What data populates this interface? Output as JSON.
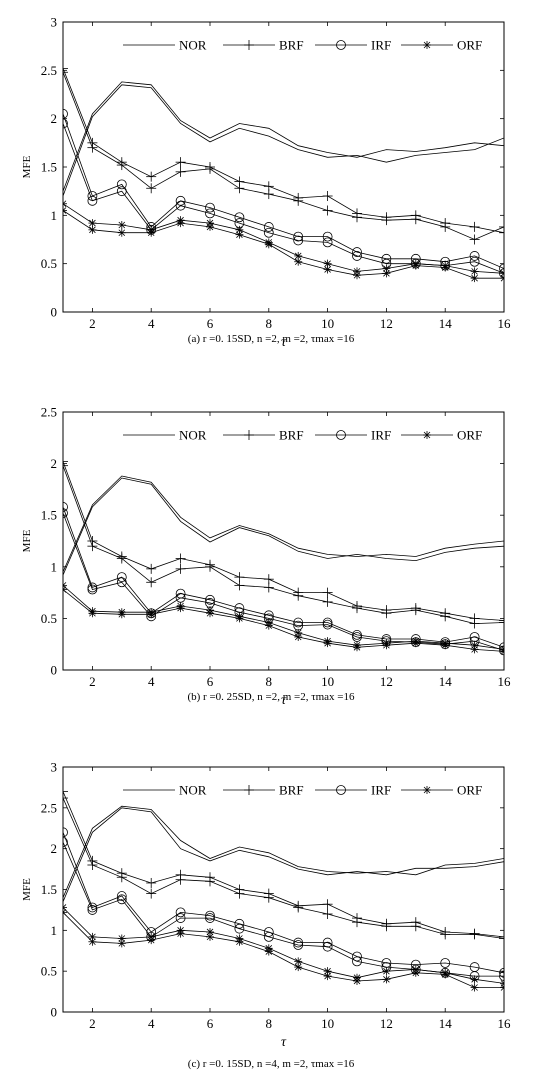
{
  "figure": {
    "captions": [
      "(a) r =0. 15SD, n =2, m =2, τmax =16",
      "(b) r =0. 25SD, n =2, m =2, τmax =16",
      "(c) r =0. 15SD, n =4, m =2, τmax =16"
    ]
  },
  "chart_data": [
    {
      "type": "line",
      "title": "",
      "xlabel": "τ",
      "ylabel": "MFE",
      "xlim": [
        1,
        16
      ],
      "ylim": [
        0,
        3
      ],
      "xticks": [
        2,
        4,
        6,
        8,
        10,
        12,
        14,
        16
      ],
      "yticks": [
        0,
        0.5,
        1,
        1.5,
        2,
        2.5,
        3
      ],
      "ytick_labels": [
        "0",
        "0.5",
        "1",
        "1.5",
        "2",
        "2.5",
        "3"
      ],
      "legend_position": "top-right",
      "legend": [
        "NOR",
        "BRF",
        "IRF",
        "ORF"
      ],
      "x": [
        1,
        2,
        3,
        4,
        5,
        6,
        7,
        8,
        9,
        10,
        11,
        12,
        13,
        14,
        15,
        16
      ],
      "series": [
        {
          "name": "NOR",
          "marker": "none",
          "values": [
            1.25,
            2.05,
            2.38,
            2.35,
            1.98,
            1.8,
            1.95,
            1.9,
            1.72,
            1.65,
            1.6,
            1.68,
            1.66,
            1.7,
            1.75,
            1.72
          ]
        },
        {
          "marker": "none",
          "values": [
            1.2,
            2.02,
            2.35,
            2.32,
            1.95,
            1.76,
            1.9,
            1.82,
            1.68,
            1.6,
            1.62,
            1.55,
            1.62,
            1.65,
            1.68,
            1.8
          ]
        },
        {
          "name": "BRF",
          "marker": "plus",
          "values": [
            2.52,
            1.75,
            1.55,
            1.4,
            1.55,
            1.5,
            1.35,
            1.3,
            1.18,
            1.2,
            1.02,
            0.98,
            1.0,
            0.92,
            0.88,
            0.82
          ]
        },
        {
          "marker": "plus",
          "values": [
            2.48,
            1.7,
            1.52,
            1.28,
            1.45,
            1.48,
            1.28,
            1.22,
            1.15,
            1.05,
            0.98,
            0.95,
            0.96,
            0.88,
            0.75,
            0.88
          ]
        },
        {
          "name": "IRF",
          "marker": "circle",
          "values": [
            2.05,
            1.2,
            1.32,
            0.88,
            1.15,
            1.08,
            0.98,
            0.88,
            0.78,
            0.78,
            0.62,
            0.55,
            0.55,
            0.52,
            0.58,
            0.45
          ]
        },
        {
          "marker": "circle",
          "values": [
            1.95,
            1.15,
            1.25,
            0.85,
            1.1,
            1.02,
            0.92,
            0.82,
            0.74,
            0.72,
            0.58,
            0.5,
            0.5,
            0.48,
            0.52,
            0.4
          ]
        },
        {
          "name": "ORF",
          "marker": "star",
          "values": [
            1.12,
            0.92,
            0.9,
            0.85,
            0.95,
            0.92,
            0.85,
            0.72,
            0.58,
            0.5,
            0.42,
            0.45,
            0.5,
            0.48,
            0.42,
            0.4
          ]
        },
        {
          "marker": "star",
          "values": [
            1.05,
            0.85,
            0.82,
            0.82,
            0.92,
            0.88,
            0.8,
            0.7,
            0.52,
            0.44,
            0.38,
            0.4,
            0.48,
            0.46,
            0.35,
            0.35
          ]
        }
      ]
    },
    {
      "type": "line",
      "title": "",
      "xlabel": "τ",
      "ylabel": "MFE",
      "xlim": [
        1,
        16
      ],
      "ylim": [
        0,
        2.5
      ],
      "xticks": [
        2,
        4,
        6,
        8,
        10,
        12,
        14,
        16
      ],
      "yticks": [
        0,
        0.5,
        1,
        1.5,
        2,
        2.5
      ],
      "ytick_labels": [
        "0",
        "0.5",
        "1",
        "1.5",
        "2",
        "2.5"
      ],
      "legend_position": "top-right",
      "legend": [
        "NOR",
        "BRF",
        "IRF",
        "ORF"
      ],
      "x": [
        1,
        2,
        3,
        4,
        5,
        6,
        7,
        8,
        9,
        10,
        11,
        12,
        13,
        14,
        15,
        16
      ],
      "series": [
        {
          "name": "NOR",
          "marker": "none",
          "values": [
            0.95,
            1.6,
            1.88,
            1.82,
            1.48,
            1.28,
            1.4,
            1.32,
            1.18,
            1.12,
            1.1,
            1.12,
            1.1,
            1.18,
            1.22,
            1.25
          ]
        },
        {
          "marker": "none",
          "values": [
            0.92,
            1.58,
            1.86,
            1.8,
            1.44,
            1.24,
            1.38,
            1.3,
            1.15,
            1.08,
            1.12,
            1.08,
            1.06,
            1.14,
            1.18,
            1.2
          ]
        },
        {
          "name": "BRF",
          "marker": "plus",
          "values": [
            2.02,
            1.25,
            1.1,
            0.98,
            1.08,
            1.02,
            0.9,
            0.88,
            0.75,
            0.75,
            0.62,
            0.58,
            0.6,
            0.55,
            0.5,
            0.48
          ]
        },
        {
          "marker": "plus",
          "values": [
            1.98,
            1.2,
            1.08,
            0.85,
            0.98,
            1.0,
            0.82,
            0.8,
            0.72,
            0.66,
            0.6,
            0.55,
            0.58,
            0.52,
            0.45,
            0.46
          ]
        },
        {
          "name": "IRF",
          "marker": "circle",
          "values": [
            1.58,
            0.8,
            0.9,
            0.55,
            0.74,
            0.68,
            0.6,
            0.53,
            0.46,
            0.46,
            0.34,
            0.3,
            0.3,
            0.27,
            0.32,
            0.22
          ]
        },
        {
          "marker": "circle",
          "values": [
            1.52,
            0.78,
            0.85,
            0.52,
            0.7,
            0.65,
            0.56,
            0.5,
            0.43,
            0.44,
            0.32,
            0.28,
            0.27,
            0.25,
            0.28,
            0.19
          ]
        },
        {
          "name": "ORF",
          "marker": "star",
          "values": [
            0.82,
            0.57,
            0.56,
            0.56,
            0.62,
            0.58,
            0.52,
            0.46,
            0.36,
            0.28,
            0.24,
            0.26,
            0.28,
            0.26,
            0.24,
            0.2
          ]
        },
        {
          "marker": "star",
          "values": [
            0.78,
            0.55,
            0.54,
            0.54,
            0.6,
            0.55,
            0.5,
            0.43,
            0.32,
            0.26,
            0.22,
            0.24,
            0.26,
            0.24,
            0.2,
            0.18
          ]
        }
      ]
    },
    {
      "type": "line",
      "title": "",
      "xlabel": "τ",
      "ylabel": "MFE",
      "xlim": [
        1,
        16
      ],
      "ylim": [
        0,
        3
      ],
      "xticks": [
        2,
        4,
        6,
        8,
        10,
        12,
        14,
        16
      ],
      "yticks": [
        0,
        0.5,
        1,
        1.5,
        2,
        2.5,
        3
      ],
      "ytick_labels": [
        "0",
        "0.5",
        "1",
        "1.5",
        "2",
        "2.5",
        "3"
      ],
      "legend_position": "top-right",
      "legend": [
        "NOR",
        "BRF",
        "IRF",
        "ORF"
      ],
      "x": [
        1,
        2,
        3,
        4,
        5,
        6,
        7,
        8,
        9,
        10,
        11,
        12,
        13,
        14,
        15,
        16
      ],
      "series": [
        {
          "name": "NOR",
          "marker": "none",
          "values": [
            1.4,
            2.25,
            2.52,
            2.48,
            2.1,
            1.88,
            2.02,
            1.95,
            1.78,
            1.72,
            1.7,
            1.72,
            1.68,
            1.8,
            1.82,
            1.88
          ]
        },
        {
          "marker": "none",
          "values": [
            1.35,
            2.2,
            2.5,
            2.45,
            2.0,
            1.85,
            1.98,
            1.9,
            1.75,
            1.68,
            1.72,
            1.68,
            1.76,
            1.76,
            1.78,
            1.84
          ]
        },
        {
          "name": "BRF",
          "marker": "plus",
          "values": [
            2.7,
            1.85,
            1.7,
            1.58,
            1.68,
            1.65,
            1.5,
            1.45,
            1.3,
            1.32,
            1.15,
            1.08,
            1.1,
            0.98,
            0.96,
            0.92
          ]
        },
        {
          "marker": "plus",
          "values": [
            2.62,
            1.8,
            1.65,
            1.45,
            1.62,
            1.6,
            1.45,
            1.4,
            1.28,
            1.2,
            1.1,
            1.05,
            1.05,
            0.95,
            0.95,
            0.9
          ]
        },
        {
          "name": "IRF",
          "marker": "circle",
          "values": [
            2.2,
            1.28,
            1.42,
            0.98,
            1.22,
            1.18,
            1.08,
            0.98,
            0.85,
            0.85,
            0.68,
            0.6,
            0.58,
            0.6,
            0.55,
            0.48
          ]
        },
        {
          "marker": "circle",
          "values": [
            2.08,
            1.25,
            1.38,
            0.92,
            1.15,
            1.15,
            1.02,
            0.92,
            0.82,
            0.8,
            0.62,
            0.55,
            0.52,
            0.48,
            0.44,
            0.44
          ]
        },
        {
          "name": "ORF",
          "marker": "star",
          "values": [
            1.28,
            0.92,
            0.9,
            0.92,
            1.0,
            0.98,
            0.9,
            0.78,
            0.62,
            0.5,
            0.42,
            0.5,
            0.52,
            0.48,
            0.4,
            0.35
          ]
        },
        {
          "marker": "star",
          "values": [
            1.22,
            0.86,
            0.84,
            0.88,
            0.96,
            0.92,
            0.86,
            0.74,
            0.55,
            0.44,
            0.38,
            0.4,
            0.48,
            0.46,
            0.3,
            0.3
          ]
        }
      ]
    }
  ]
}
